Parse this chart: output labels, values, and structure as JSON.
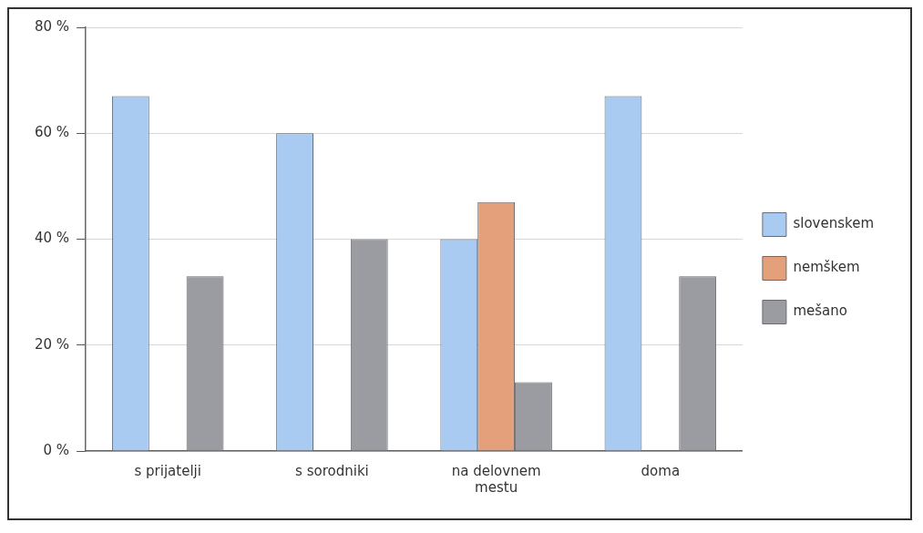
{
  "chart_data": {
    "type": "bar",
    "categories": [
      "s prijatelji",
      "s sorodniki",
      "na delovnem mestu",
      "doma"
    ],
    "series": [
      {
        "name": "slovenskem",
        "color": "#a9cbf2",
        "values": [
          67,
          60,
          40,
          67
        ]
      },
      {
        "name": "nemškem",
        "color": "#e3a07a",
        "values": [
          null,
          null,
          47,
          null
        ]
      },
      {
        "name": "mešano",
        "color": "#9b9ca1",
        "values": [
          33,
          40,
          13,
          33
        ]
      }
    ],
    "ylim": [
      0,
      80
    ],
    "yticks": [
      {
        "value": 0,
        "label": "0 %"
      },
      {
        "value": 20,
        "label": "20 %"
      },
      {
        "value": 40,
        "label": "40 %"
      },
      {
        "value": 60,
        "label": "60 %"
      },
      {
        "value": 80,
        "label": "80 %"
      }
    ],
    "grid": "y",
    "legend": "right"
  }
}
